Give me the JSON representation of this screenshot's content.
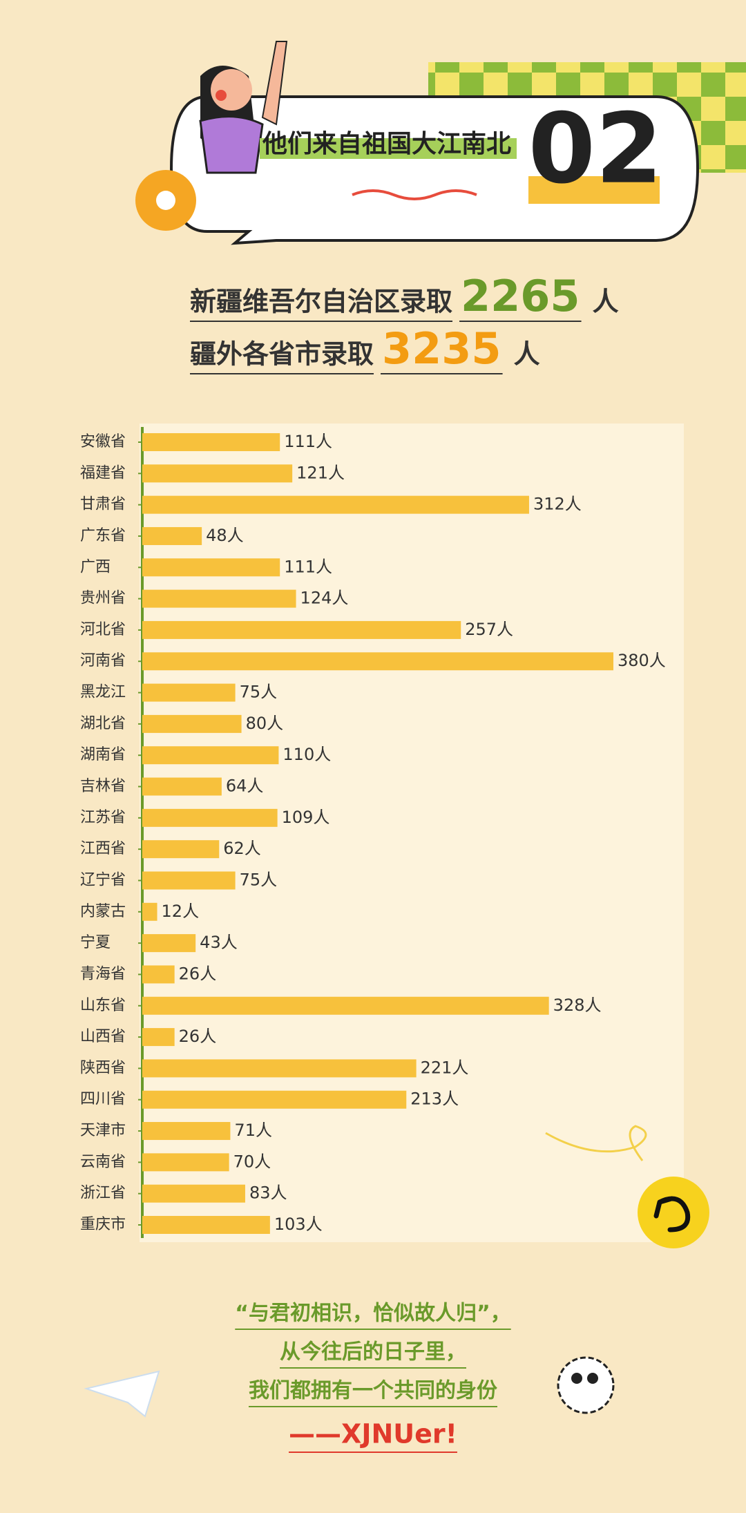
{
  "header": {
    "title": "他们来自祖国大江南北",
    "number": "02"
  },
  "stats": [
    {
      "label": "新疆维吾尔自治区录取",
      "value": 2265,
      "unit": "人"
    },
    {
      "label": "疆外各省市录取",
      "value": 3235,
      "unit": "人"
    }
  ],
  "chart_data": {
    "type": "bar",
    "orientation": "horizontal",
    "color": "#f7c13c",
    "categories": [
      "安徽省",
      "福建省",
      "甘肃省",
      "广东省",
      "广西",
      "贵州省",
      "河北省",
      "河南省",
      "黑龙江",
      "湖北省",
      "湖南省",
      "吉林省",
      "江苏省",
      "江西省",
      "辽宁省",
      "内蒙古",
      "宁夏",
      "青海省",
      "山东省",
      "山西省",
      "陕西省",
      "四川省",
      "天津市",
      "云南省",
      "浙江省",
      "重庆市"
    ],
    "values": [
      111,
      121,
      312,
      48,
      111,
      124,
      257,
      380,
      75,
      80,
      110,
      64,
      109,
      62,
      75,
      12,
      43,
      26,
      328,
      26,
      221,
      213,
      71,
      70,
      83,
      103
    ],
    "value_labels": [
      "111人",
      "121人",
      "312人",
      "48人",
      "111人",
      "124人",
      "257人",
      "380人",
      "75人",
      "80人",
      "110人",
      "64人",
      "109人",
      "62人",
      "75人",
      "12人",
      "43人",
      "26人",
      "328人",
      "26人",
      "221人",
      "213人",
      "71人",
      "70人",
      "83人",
      "103人"
    ]
  },
  "footer": {
    "lines": [
      "“与君初相识，恰似故人归”，",
      "从今往后的日子里，",
      "我们都拥有一个共同的身份"
    ],
    "signature": "——XJNUer!"
  }
}
